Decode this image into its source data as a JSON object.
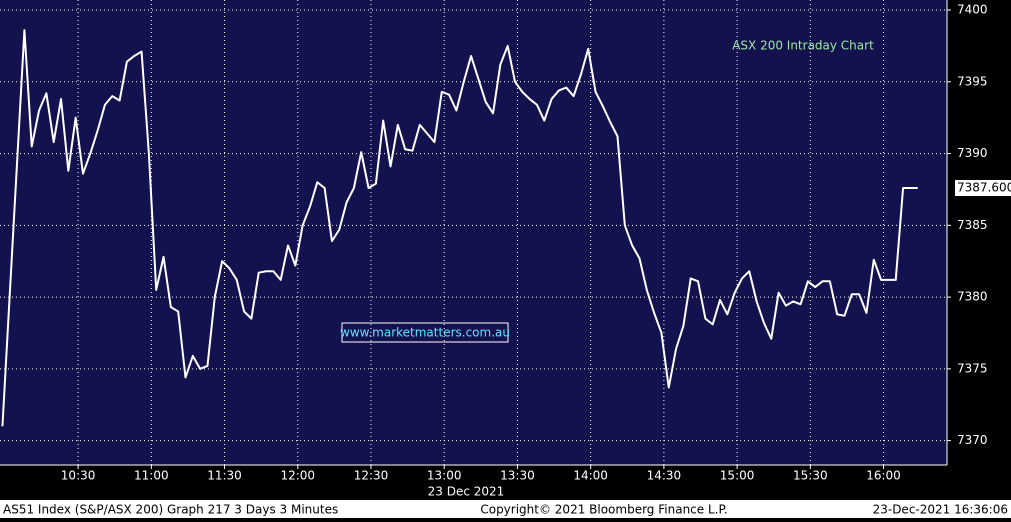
{
  "chart_data": {
    "type": "line",
    "title": "ASX 200 Intraday Chart",
    "watermark": "www.marketmatters.com.au",
    "x_label": "23 Dec 2021",
    "footer_left": "AS51 Index (S&P/ASX 200) Graph 217 3 Days 3 Minutes",
    "footer_center": "Copyright© 2021 Bloomberg Finance L.P.",
    "footer_right": "23-Dec-2021 16:36:06",
    "xlim": [
      "09:58",
      "16:26"
    ],
    "xticks": [
      "10:30",
      "11:00",
      "11:30",
      "12:00",
      "12:30",
      "13:00",
      "13:30",
      "14:00",
      "14:30",
      "15:00",
      "15:30",
      "16:00"
    ],
    "ylim": [
      7368.3,
      7400.7
    ],
    "yticks": [
      7370,
      7375,
      7380,
      7385,
      7390,
      7395,
      7400
    ],
    "grid": true,
    "background": "#13124f",
    "x": [
      "09:59",
      "10:08",
      "10:11",
      "10:14",
      "10:17",
      "10:20",
      "10:23",
      "10:26",
      "10:29",
      "10:32",
      "10:35",
      "10:38",
      "10:41",
      "10:44",
      "10:47",
      "10:50",
      "10:53",
      "10:56",
      "10:59",
      "11:02",
      "11:05",
      "11:08",
      "11:11",
      "11:14",
      "11:17",
      "11:20",
      "11:23",
      "11:26",
      "11:29",
      "11:32",
      "11:35",
      "11:38",
      "11:41",
      "11:44",
      "11:47",
      "11:50",
      "11:53",
      "11:56",
      "11:59",
      "12:02",
      "12:05",
      "12:08",
      "12:11",
      "12:14",
      "12:17",
      "12:20",
      "12:23",
      "12:26",
      "12:29",
      "12:32",
      "12:35",
      "12:38",
      "12:41",
      "12:44",
      "12:47",
      "12:50",
      "12:53",
      "12:56",
      "12:59",
      "13:02",
      "13:05",
      "13:08",
      "13:11",
      "13:14",
      "13:17",
      "13:20",
      "13:23",
      "13:26",
      "13:29",
      "13:32",
      "13:35",
      "13:38",
      "13:41",
      "13:44",
      "13:47",
      "13:50",
      "13:53",
      "13:56",
      "13:59",
      "14:02",
      "14:05",
      "14:08",
      "14:11",
      "14:14",
      "14:17",
      "14:20",
      "14:23",
      "14:26",
      "14:29",
      "14:32",
      "14:35",
      "14:38",
      "14:41",
      "14:44",
      "14:47",
      "14:50",
      "14:53",
      "14:56",
      "14:59",
      "15:02",
      "15:05",
      "15:08",
      "15:11",
      "15:14",
      "15:17",
      "15:20",
      "15:23",
      "15:26",
      "15:29",
      "15:32",
      "15:35",
      "15:38",
      "15:41",
      "15:44",
      "15:47",
      "15:50",
      "15:53",
      "15:56",
      "15:59",
      "16:02",
      "16:05",
      "16:08",
      "16:11",
      "16:14"
    ],
    "series": [
      {
        "name": "AS51 Index",
        "color": "#ffffff",
        "values": [
          7371,
          7398.6,
          7390.5,
          7393,
          7394.2,
          7390.8,
          7393.8,
          7388.8,
          7392.5,
          7388.6,
          7390,
          7391.6,
          7393.4,
          7394,
          7393.7,
          7396.4,
          7396.8,
          7397.1,
          7390,
          7380.5,
          7382.8,
          7379.3,
          7379,
          7374.4,
          7375.9,
          7375,
          7375.2,
          7380,
          7382.5,
          7382,
          7381.2,
          7379,
          7378.5,
          7381.7,
          7381.8,
          7381.8,
          7381.2,
          7383.6,
          7382.2,
          7385,
          7386.3,
          7388,
          7387.6,
          7383.9,
          7384.7,
          7386.6,
          7387.6,
          7390.1,
          7387.6,
          7387.9,
          7392.3,
          7389.1,
          7392,
          7390.3,
          7390.2,
          7392,
          7391.4,
          7390.8,
          7394.3,
          7394.1,
          7393,
          7395,
          7396.8,
          7395.2,
          7393.6,
          7392.8,
          7396.2,
          7397.5,
          7395,
          7394.3,
          7393.8,
          7393.4,
          7392.3,
          7393.8,
          7394.4,
          7394.6,
          7394,
          7395.5,
          7397.3,
          7394.3,
          7393.3,
          7392.2,
          7391.2,
          7385,
          7383.6,
          7382.7,
          7380.5,
          7378.9,
          7377.5,
          7373.7,
          7376.4,
          7378,
          7381.3,
          7381.1,
          7378.5,
          7378.1,
          7379.8,
          7378.8,
          7380.3,
          7381.3,
          7381.8,
          7379.7,
          7378.2,
          7377.1,
          7380.3,
          7379.4,
          7379.7,
          7379.5,
          7381.1,
          7380.7,
          7381.1,
          7381.1,
          7378.8,
          7378.7,
          7380.2,
          7380.2,
          7378.9,
          7382.6,
          7381.2,
          7381.2,
          7381.2,
          7387.6,
          7387.6,
          7387.6
        ]
      }
    ],
    "last_price": {
      "value": 7387.6,
      "label": "7387.600"
    }
  }
}
